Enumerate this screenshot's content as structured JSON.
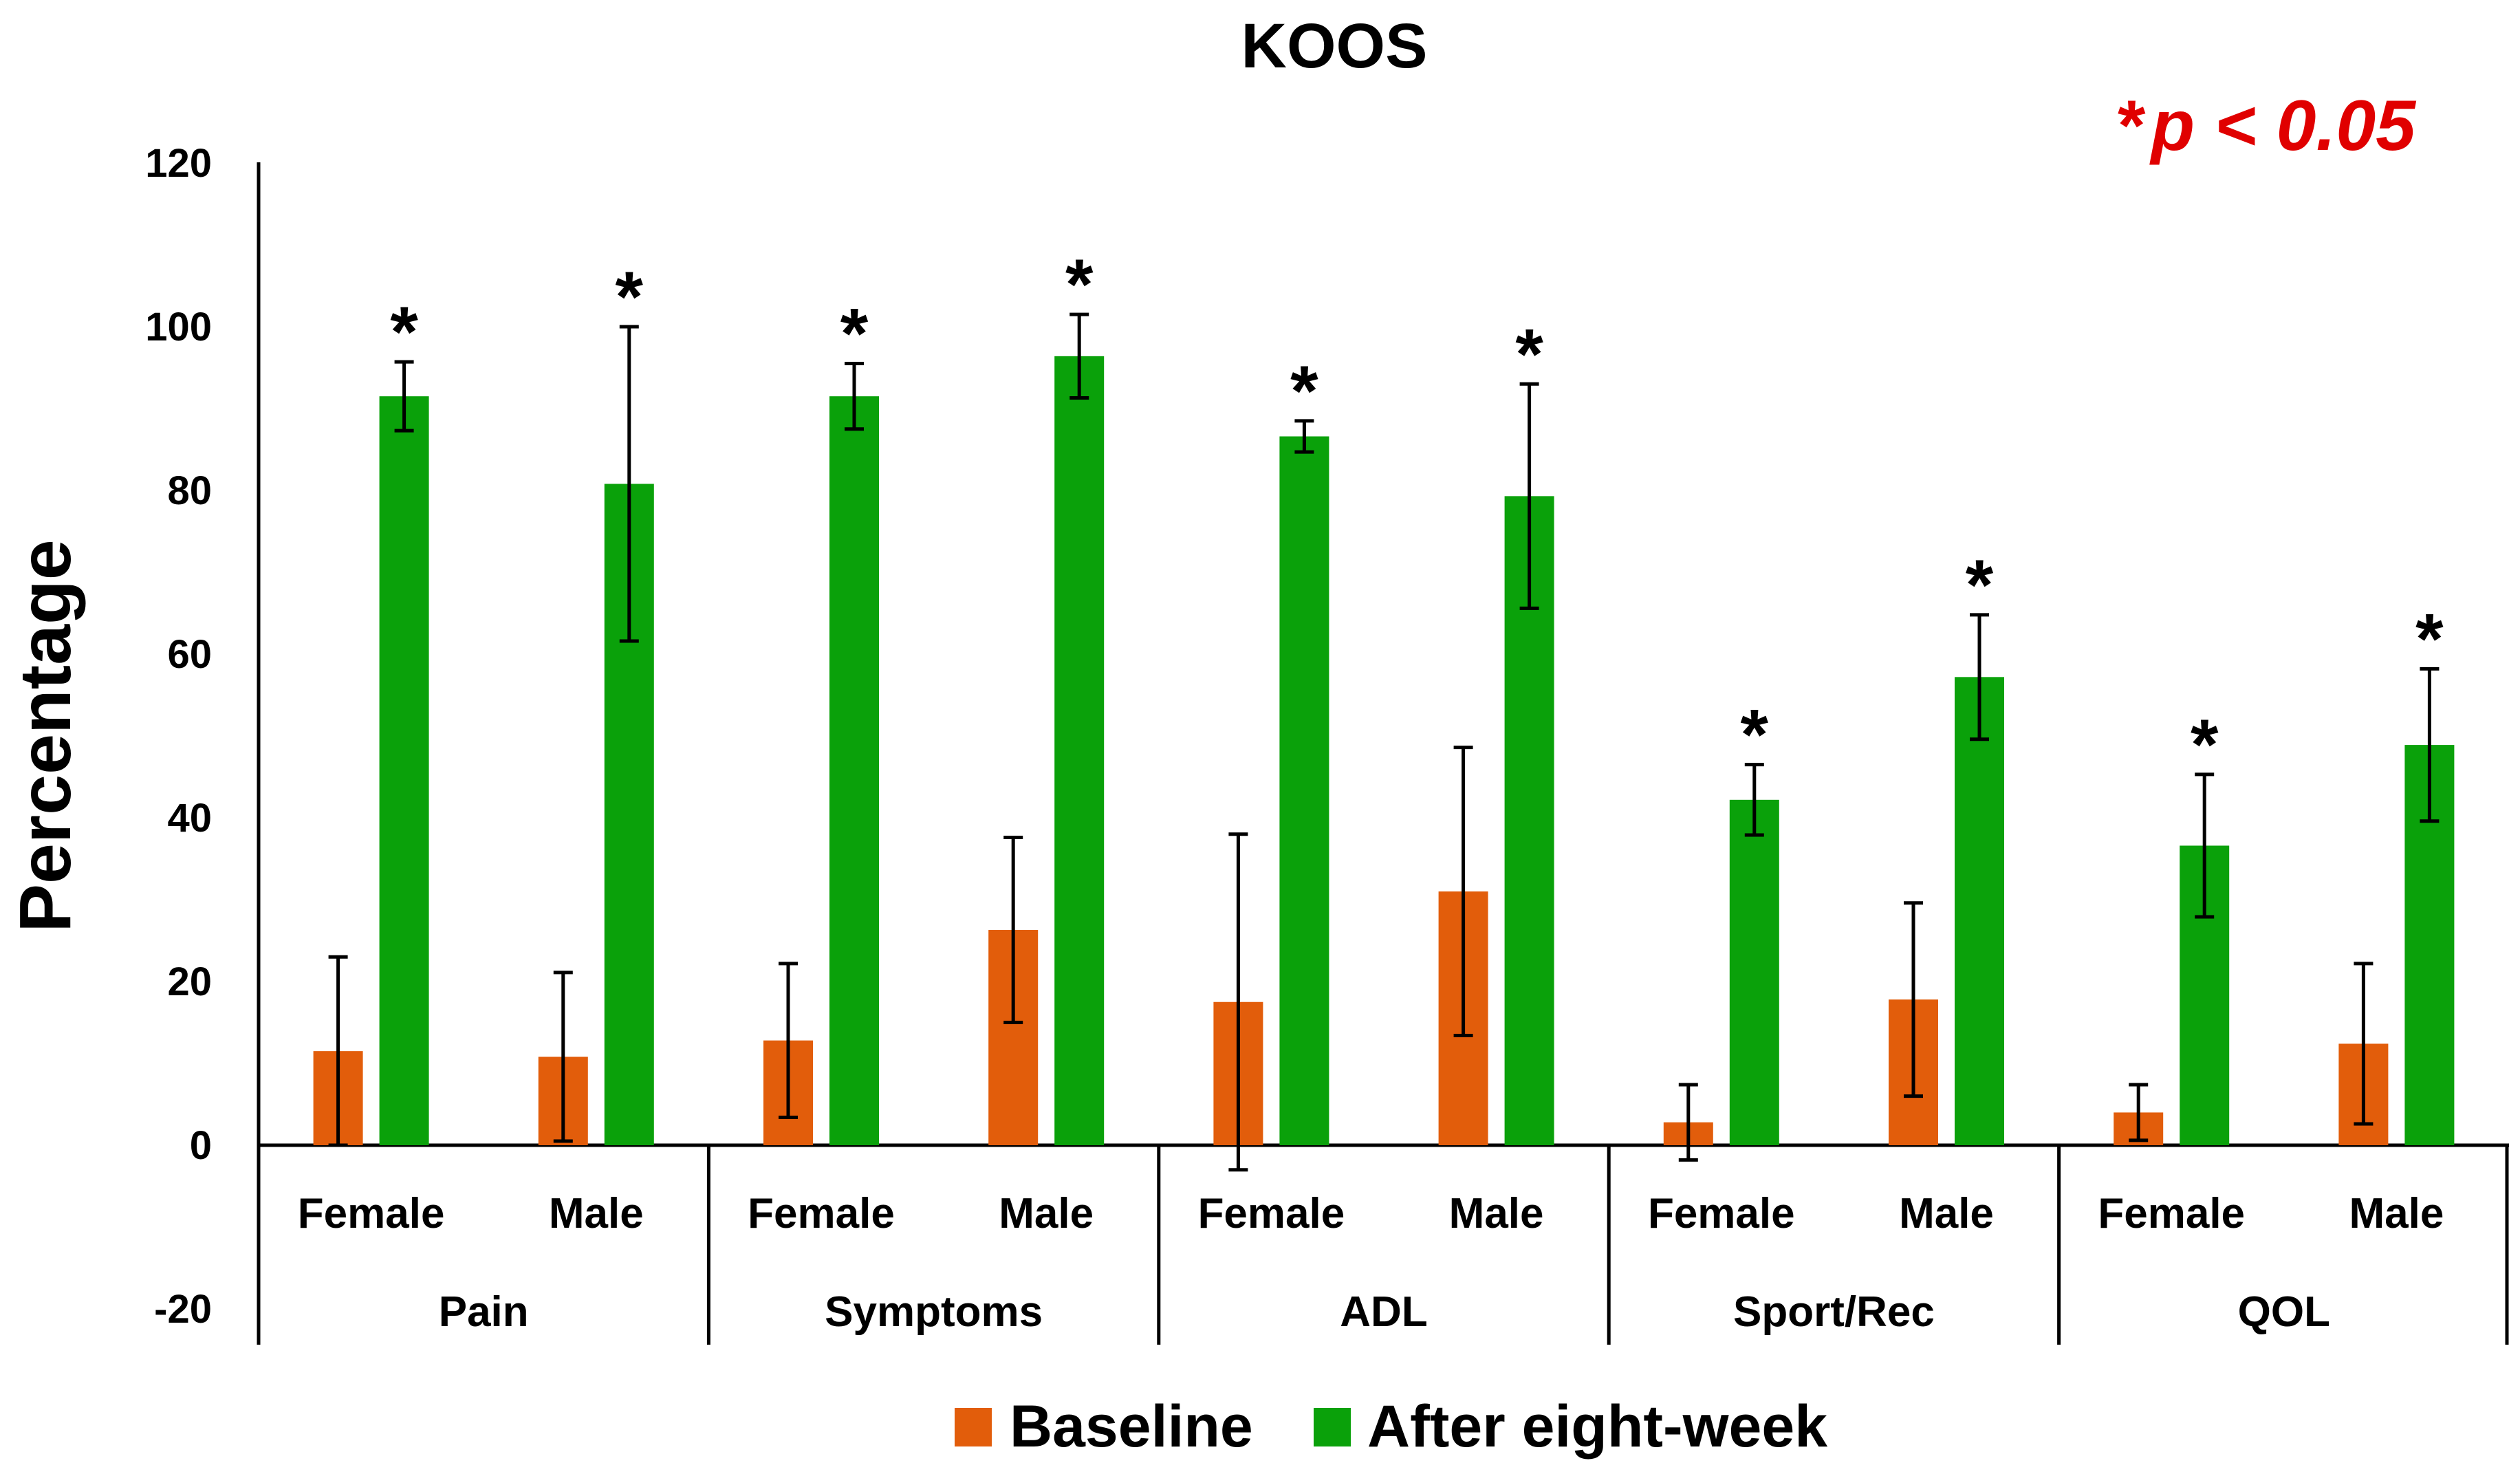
{
  "chart_data": {
    "type": "bar",
    "title": "KOOS",
    "significance_note": {
      "marker": "*",
      "text": "p < 0.05"
    },
    "ylabel": "Percentage",
    "xlabel": "",
    "ylim": [
      -20,
      120
    ],
    "yticks": [
      -20,
      0,
      20,
      40,
      60,
      80,
      100,
      120
    ],
    "grid": false,
    "legend_position": "bottom",
    "groups": [
      "Pain",
      "Symptoms",
      "ADL",
      "Sport/Rec",
      "QOL"
    ],
    "subgroups": [
      "Female",
      "Male"
    ],
    "series": [
      {
        "name": "Baseline",
        "color": "#e25d0b",
        "values": [
          11.5,
          10.8,
          12.8,
          26.3,
          17.5,
          31.0,
          2.8,
          17.8,
          4.0,
          12.4
        ],
        "errors": [
          11.5,
          10.3,
          9.4,
          11.3,
          20.5,
          17.6,
          4.6,
          11.8,
          3.4,
          9.8
        ],
        "significant": [
          false,
          false,
          false,
          false,
          false,
          false,
          false,
          false,
          false,
          false
        ]
      },
      {
        "name": "After eight-week",
        "color": "#0aa10a",
        "values": [
          91.5,
          80.8,
          91.5,
          96.4,
          86.6,
          79.3,
          42.2,
          57.2,
          36.6,
          48.9
        ],
        "errors": [
          4.2,
          19.2,
          4.0,
          5.1,
          1.9,
          13.7,
          4.3,
          7.6,
          8.7,
          9.3
        ],
        "significant": [
          true,
          true,
          true,
          true,
          true,
          true,
          true,
          true,
          true,
          true
        ]
      }
    ]
  }
}
